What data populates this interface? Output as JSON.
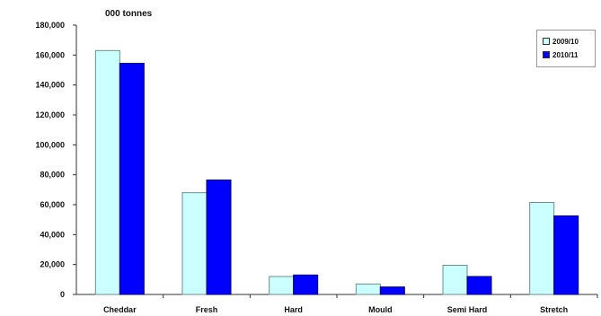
{
  "chart_data": {
    "type": "bar",
    "title": "000 tonnes",
    "xlabel": "",
    "ylabel": "",
    "categories": [
      "Cheddar",
      "Fresh",
      "Hard",
      "Mould",
      "Semi Hard",
      "Stretch"
    ],
    "series": [
      {
        "name": "2009/10",
        "color": "#ccffff",
        "values": [
          163000,
          68000,
          12000,
          7000,
          19500,
          61500
        ]
      },
      {
        "name": "2010/11",
        "color": "#0000ff",
        "values": [
          154500,
          76500,
          13000,
          5000,
          12000,
          52500
        ]
      }
    ],
    "ylim": [
      0,
      180000
    ],
    "yticks": [
      0,
      20000,
      40000,
      60000,
      80000,
      100000,
      120000,
      140000,
      160000,
      180000
    ],
    "ytick_labels": [
      "0",
      "20,000",
      "40,000",
      "60,000",
      "80,000",
      "100,000",
      "120,000",
      "140,000",
      "160,000",
      "180,000"
    ],
    "grid": false,
    "legend_position": "top-right"
  }
}
